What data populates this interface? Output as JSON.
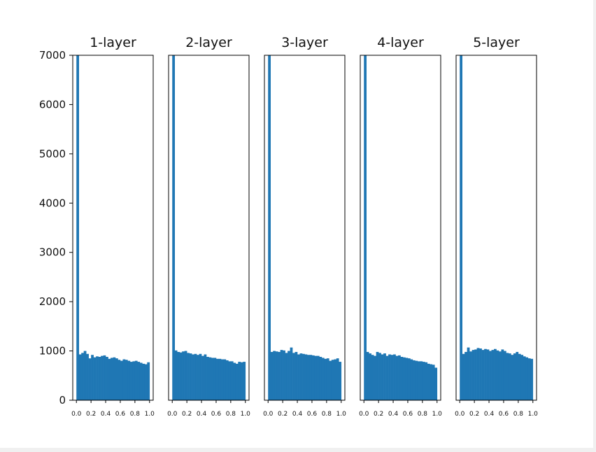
{
  "colors": {
    "bar": "#1f77b4",
    "axis": "#000000",
    "background": "#ffffff",
    "page": "#f0f0f0"
  },
  "chart_data": {
    "type": "bar",
    "layout": "1x5 subplots, shared y-axis",
    "grid": false,
    "ylim": [
      0,
      7000
    ],
    "yticks": [
      0,
      1000,
      2000,
      3000,
      4000,
      5000,
      6000,
      7000
    ],
    "xlim": [
      -0.05,
      1.05
    ],
    "xticks": [
      0.0,
      0.2,
      0.4,
      0.6,
      0.8,
      1.0
    ],
    "xtick_labels": [
      "0.0",
      "0.2",
      "0.4",
      "0.6",
      "0.8",
      "1.0"
    ],
    "ytick_labels": [
      "0",
      "1000",
      "2000",
      "3000",
      "4000",
      "5000",
      "6000",
      "7000"
    ],
    "bins": 30,
    "bin_range": [
      0,
      1
    ],
    "subplots": [
      {
        "title": "1-layer",
        "counts": [
          7000,
          930,
          960,
          1000,
          940,
          850,
          920,
          870,
          890,
          880,
          900,
          910,
          880,
          840,
          860,
          870,
          850,
          820,
          800,
          830,
          820,
          800,
          780,
          790,
          800,
          780,
          760,
          740,
          730,
          770
        ]
      },
      {
        "title": "2-layer",
        "counts": [
          7000,
          1010,
          980,
          970,
          990,
          1000,
          960,
          950,
          930,
          940,
          920,
          940,
          900,
          930,
          880,
          870,
          860,
          860,
          840,
          840,
          830,
          830,
          810,
          790,
          790,
          760,
          740,
          780,
          770,
          780
        ]
      },
      {
        "title": "3-layer",
        "counts": [
          7000,
          980,
          1000,
          990,
          980,
          1020,
          1010,
          960,
          1000,
          1070,
          960,
          980,
          930,
          950,
          940,
          930,
          920,
          920,
          910,
          900,
          900,
          880,
          860,
          840,
          850,
          800,
          820,
          830,
          850,
          780
        ]
      },
      {
        "title": "4-layer",
        "counts": [
          7000,
          980,
          950,
          920,
          900,
          980,
          960,
          930,
          950,
          900,
          930,
          920,
          930,
          900,
          910,
          880,
          870,
          860,
          850,
          830,
          810,
          800,
          790,
          790,
          780,
          770,
          740,
          730,
          720,
          660
        ]
      },
      {
        "title": "5-layer",
        "counts": [
          7000,
          940,
          980,
          1070,
          990,
          1020,
          1030,
          1060,
          1050,
          1020,
          1040,
          1030,
          1000,
          1020,
          1040,
          1010,
          990,
          1030,
          1000,
          960,
          950,
          920,
          950,
          980,
          940,
          920,
          890,
          870,
          850,
          840
        ]
      }
    ]
  }
}
